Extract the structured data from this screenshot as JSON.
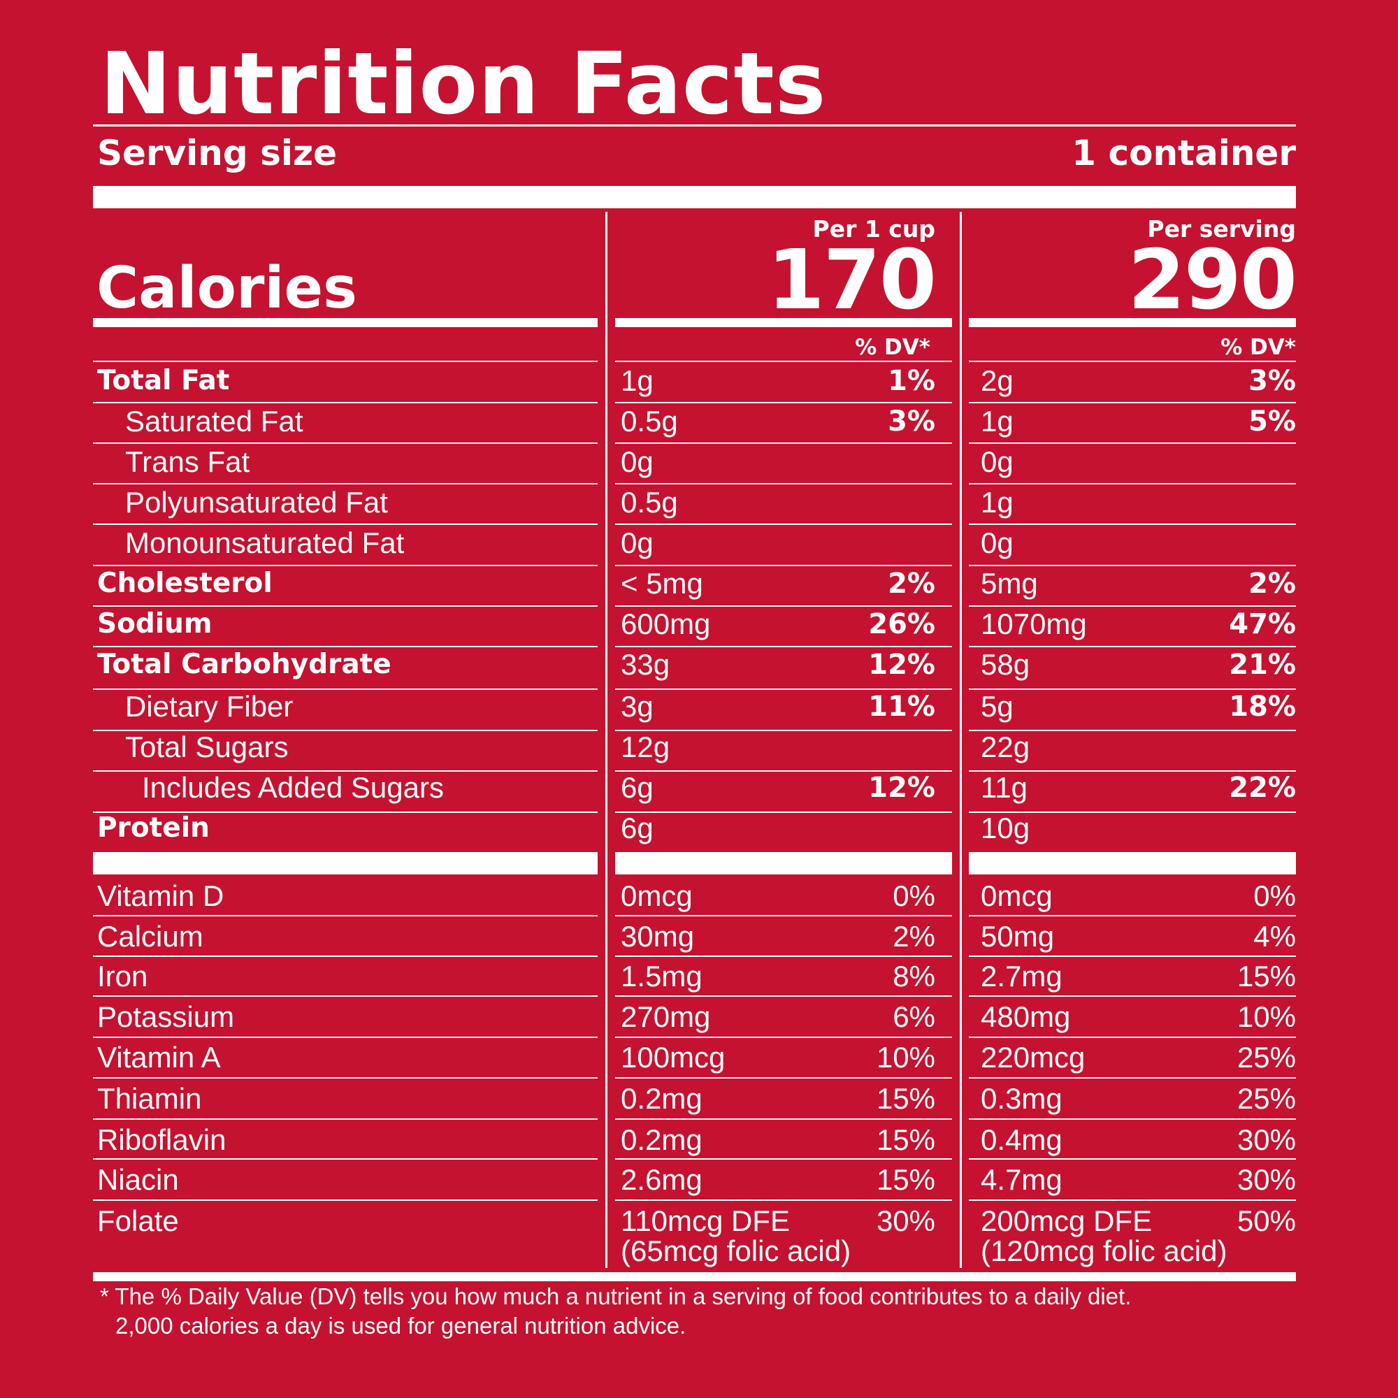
{
  "title": "Nutrition Facts",
  "serving": {
    "label": "Serving size",
    "value": "1 container"
  },
  "columns": [
    {
      "header": "Per 1 cup",
      "calories": "170",
      "dv_header": "% DV*"
    },
    {
      "header": "Per serving",
      "calories": "290",
      "dv_header": "% DV*"
    }
  ],
  "calories_label": "Calories",
  "nutrients": [
    {
      "name": "Total Fat",
      "c1": "1g",
      "d1": "1%",
      "c2": "2g",
      "d2": "3%"
    },
    {
      "name": "Saturated Fat",
      "c1": "0.5g",
      "d1": "3%",
      "c2": "1g",
      "d2": "5%"
    },
    {
      "name": "Trans Fat",
      "c1": "0g",
      "d1": "",
      "c2": "0g",
      "d2": ""
    },
    {
      "name": "Polyunsaturated Fat",
      "c1": "0.5g",
      "d1": "",
      "c2": "1g",
      "d2": ""
    },
    {
      "name": "Monounsaturated Fat",
      "c1": "0g",
      "d1": "",
      "c2": "0g",
      "d2": ""
    },
    {
      "name": "Cholesterol",
      "c1": "< 5mg",
      "d1": "2%",
      "c2": "5mg",
      "d2": "2%"
    },
    {
      "name": "Sodium",
      "c1": "600mg",
      "d1": "26%",
      "c2": "1070mg",
      "d2": "47%"
    },
    {
      "name": "Total Carbohydrate",
      "c1": "33g",
      "d1": "12%",
      "c2": "58g",
      "d2": "21%"
    },
    {
      "name": "Dietary Fiber",
      "c1": "3g",
      "d1": "11%",
      "c2": "5g",
      "d2": "18%"
    },
    {
      "name": "Total Sugars",
      "c1": "12g",
      "d1": "",
      "c2": "22g",
      "d2": ""
    },
    {
      "name": "Includes Added Sugars",
      "c1": "6g",
      "d1": "12%",
      "c2": "11g",
      "d2": "22%"
    },
    {
      "name": "Protein",
      "c1": "6g",
      "d1": "",
      "c2": "10g",
      "d2": ""
    }
  ],
  "vitamins": [
    {
      "name": "Vitamin D",
      "c1": "0mcg",
      "d1": "0%",
      "c2": "0mcg",
      "d2": "0%"
    },
    {
      "name": "Calcium",
      "c1": "30mg",
      "d1": "2%",
      "c2": "50mg",
      "d2": "4%"
    },
    {
      "name": "Iron",
      "c1": "1.5mg",
      "d1": "8%",
      "c2": "2.7mg",
      "d2": "15%"
    },
    {
      "name": "Potassium",
      "c1": "270mg",
      "d1": "6%",
      "c2": "480mg",
      "d2": "10%"
    },
    {
      "name": "Vitamin A",
      "c1": "100mcg",
      "d1": "10%",
      "c2": "220mcg",
      "d2": "25%"
    },
    {
      "name": "Thiamin",
      "c1": "0.2mg",
      "d1": "15%",
      "c2": "0.3mg",
      "d2": "25%"
    },
    {
      "name": "Riboflavin",
      "c1": "0.2mg",
      "d1": "15%",
      "c2": "0.4mg",
      "d2": "30%"
    },
    {
      "name": "Niacin",
      "c1": "2.6mg",
      "d1": "15%",
      "c2": "4.7mg",
      "d2": "30%"
    },
    {
      "name": "Folate",
      "c1": "110mcg DFE",
      "d1": "30%",
      "c2": "200mcg DFE",
      "d2": "50%"
    }
  ],
  "folate_sub": {
    "c1": "(65mcg folic acid)",
    "c2": "(120mcg folic acid)"
  },
  "footnote": {
    "line1": "* The % Daily Value (DV) tells you how much a nutrient in a serving of food contributes to a daily diet.",
    "line2": "2,000 calories a day is used for general nutrition advice."
  }
}
